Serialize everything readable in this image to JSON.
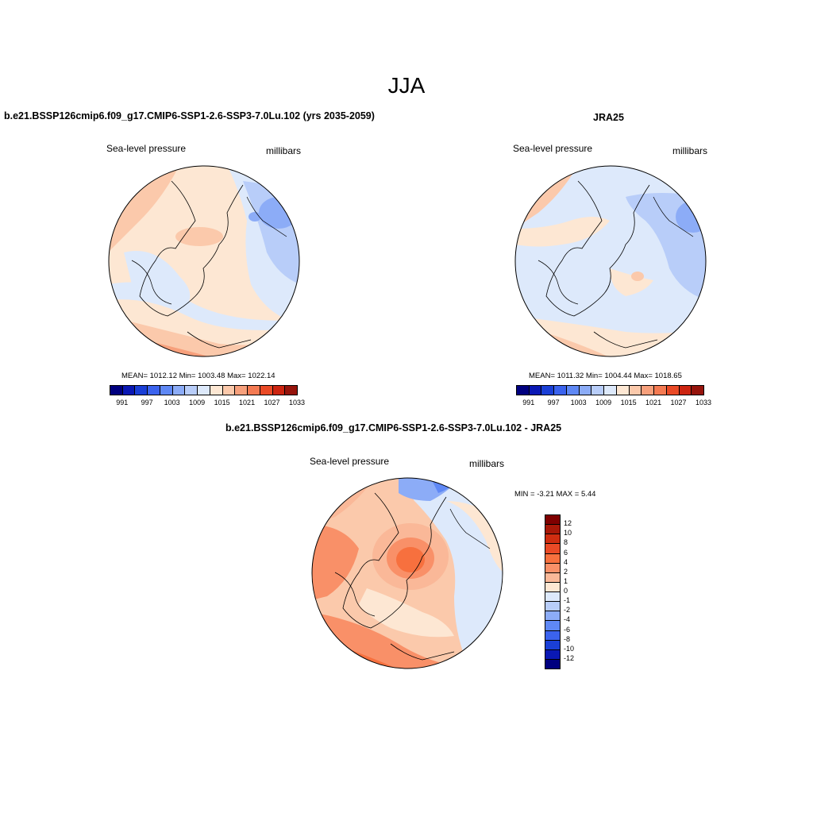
{
  "figure": {
    "title": "JJA"
  },
  "panels": {
    "model": {
      "title": "b.e21.BSSP126cmip6.f09_g17.CMIP6-SSP1-2.6-SSP3-7.0Lu.102 (yrs 2035-2059)",
      "variable": "Sea-level pressure",
      "units": "millibars",
      "stats": "MEAN= 1012.12  Min= 1003.48  Max= 1022.14"
    },
    "obs": {
      "title": "JRA25",
      "variable": "Sea-level pressure",
      "units": "millibars",
      "stats": "MEAN= 1011.32  Min= 1004.44  Max= 1018.65"
    },
    "diff": {
      "title": "b.e21.BSSP126cmip6.f09_g17.CMIP6-SSP1-2.6-SSP3-7.0Lu.102 - JRA25",
      "variable": "Sea-level pressure",
      "units": "millibars",
      "stats": "MIN =  -3.21 MAX =   5.44"
    }
  },
  "colorbars": {
    "slp": {
      "colors": [
        "#00007f",
        "#0a18b4",
        "#1a3fd6",
        "#3b63ee",
        "#5f88f5",
        "#8cacf7",
        "#b8cdf9",
        "#dde9fb",
        "#fde7d3",
        "#fbc9ab",
        "#f7a07c",
        "#f47a52",
        "#ea4a26",
        "#cc2410",
        "#96140c"
      ],
      "tick_labels": [
        "991",
        "997",
        "1003",
        "1009",
        "1015",
        "1021",
        "1027",
        "1033"
      ]
    },
    "diff": {
      "colors": [
        "#7f0000",
        "#a81808",
        "#cf2d10",
        "#ea4a26",
        "#f7703e",
        "#f99068",
        "#fab898",
        "#fde7d3",
        "#dde9fb",
        "#b8cdf9",
        "#8cacf7",
        "#5f88f5",
        "#3b63ee",
        "#1a3fd6",
        "#0a18b4",
        "#00007f"
      ],
      "tick_labels": [
        "12",
        "10",
        "8",
        "6",
        "4",
        "2",
        "1",
        "0",
        "-1",
        "-2",
        "-4",
        "-6",
        "-8",
        "-10",
        "-12"
      ]
    }
  }
}
